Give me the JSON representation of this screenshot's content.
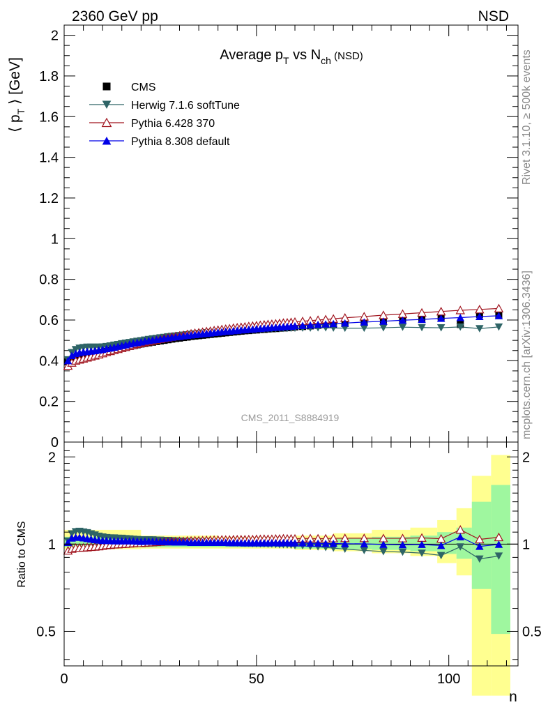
{
  "header": {
    "left": "2360 GeV pp",
    "right": "NSD"
  },
  "side_text": {
    "rivet": "Rivet 3.1.10, ≥ 500k events",
    "mcplots": "mcplots.cern.ch [arXiv:1306.3436]"
  },
  "watermark": "CMS_2011_S8884919",
  "colors": {
    "cms": "#000000",
    "herwig": "#2e6466",
    "pythia6": "#a0141e",
    "pythia8": "#0000e6",
    "band_outer": "#ffff90",
    "band_inner": "#9ff79f"
  },
  "chart_data": [
    {
      "type": "scatter",
      "title": {
        "main": "Average p",
        "sub1": "T",
        "mid": " vs N",
        "sub2": "ch",
        "tail": " (NSD)"
      },
      "ylabel": {
        "pre": "⟨ p",
        "sub": "T",
        "post": " ⟩ [GeV]"
      },
      "xlabel": "n",
      "xlim": [
        0,
        118
      ],
      "ylim": [
        0,
        2.05
      ],
      "y_ticks": [
        "0",
        "0.2",
        "0.4",
        "0.6",
        "0.8",
        "1",
        "1.2",
        "1.4",
        "1.6",
        "1.8",
        "2"
      ],
      "x_ticks": [
        "0",
        "50",
        "100"
      ],
      "legend_position": "top-left",
      "x": [
        1,
        2,
        3,
        4,
        5,
        6,
        7,
        8,
        9,
        10,
        11,
        12,
        13,
        14,
        15,
        16,
        17,
        18,
        19,
        20,
        21,
        22,
        23,
        24,
        25,
        26,
        27,
        28,
        29,
        30,
        31,
        32,
        33,
        34,
        35,
        36,
        37,
        38,
        39,
        40,
        41,
        42,
        43,
        44,
        45,
        46,
        47,
        48,
        49,
        50,
        51,
        52,
        53,
        54,
        55,
        56,
        57,
        58,
        59,
        60,
        62,
        64,
        66,
        68,
        70,
        73,
        78,
        83,
        88,
        93,
        98,
        103,
        108,
        113
      ],
      "series": [
        {
          "name": "CMS",
          "marker": "square",
          "values": [
            0.395,
            0.405,
            0.412,
            0.417,
            0.422,
            0.426,
            0.43,
            0.434,
            0.438,
            0.442,
            0.446,
            0.45,
            0.454,
            0.458,
            0.462,
            0.466,
            0.47,
            0.474,
            0.478,
            0.482,
            0.485,
            0.488,
            0.491,
            0.494,
            0.497,
            0.5,
            0.503,
            0.506,
            0.509,
            0.511,
            0.514,
            0.516,
            0.519,
            0.521,
            0.523,
            0.525,
            0.527,
            0.529,
            0.531,
            0.533,
            0.535,
            0.537,
            0.539,
            0.541,
            0.543,
            0.545,
            0.547,
            0.548,
            0.55,
            0.551,
            0.553,
            0.554,
            0.556,
            0.557,
            0.558,
            0.56,
            0.561,
            0.562,
            0.564,
            0.566,
            0.568,
            0.571,
            0.574,
            0.577,
            0.579,
            0.583,
            0.589,
            0.596,
            0.602,
            0.605,
            0.615,
            0.578,
            0.628,
            0.622
          ]
        },
        {
          "name": "Herwig 7.1.6 softTune",
          "marker": "triangle-down",
          "values": [
            0.405,
            0.44,
            0.455,
            0.462,
            0.465,
            0.467,
            0.467,
            0.467,
            0.467,
            0.468,
            0.47,
            0.473,
            0.477,
            0.48,
            0.484,
            0.487,
            0.49,
            0.493,
            0.496,
            0.499,
            0.502,
            0.505,
            0.508,
            0.51,
            0.513,
            0.515,
            0.518,
            0.52,
            0.522,
            0.524,
            0.526,
            0.528,
            0.53,
            0.532,
            0.534,
            0.536,
            0.538,
            0.539,
            0.54,
            0.541,
            0.543,
            0.544,
            0.545,
            0.547,
            0.548,
            0.549,
            0.55,
            0.551,
            0.552,
            0.553,
            0.554,
            0.555,
            0.556,
            0.557,
            0.557,
            0.558,
            0.559,
            0.559,
            0.56,
            0.56,
            0.561,
            0.561,
            0.562,
            0.562,
            0.561,
            0.56,
            0.56,
            0.562,
            0.565,
            0.563,
            0.562,
            0.566,
            0.558,
            0.566
          ]
        },
        {
          "name": "Pythia 6.428 370",
          "marker": "triangle-up-open",
          "values": [
            0.375,
            0.39,
            0.4,
            0.405,
            0.41,
            0.415,
            0.42,
            0.425,
            0.43,
            0.436,
            0.442,
            0.447,
            0.452,
            0.457,
            0.462,
            0.467,
            0.472,
            0.477,
            0.482,
            0.486,
            0.49,
            0.494,
            0.498,
            0.502,
            0.506,
            0.51,
            0.513,
            0.517,
            0.52,
            0.523,
            0.526,
            0.53,
            0.533,
            0.536,
            0.538,
            0.541,
            0.544,
            0.546,
            0.549,
            0.551,
            0.554,
            0.556,
            0.558,
            0.561,
            0.563,
            0.565,
            0.567,
            0.569,
            0.571,
            0.573,
            0.575,
            0.577,
            0.579,
            0.58,
            0.582,
            0.584,
            0.586,
            0.587,
            0.589,
            0.591,
            0.594,
            0.597,
            0.6,
            0.603,
            0.606,
            0.611,
            0.617,
            0.624,
            0.63,
            0.636,
            0.642,
            0.648,
            0.652,
            0.657
          ]
        },
        {
          "name": "Pythia 8.308 default",
          "marker": "triangle-up",
          "values": [
            0.4,
            0.425,
            0.435,
            0.44,
            0.443,
            0.445,
            0.447,
            0.449,
            0.452,
            0.455,
            0.459,
            0.462,
            0.466,
            0.47,
            0.474,
            0.478,
            0.482,
            0.486,
            0.489,
            0.492,
            0.496,
            0.499,
            0.502,
            0.504,
            0.507,
            0.51,
            0.512,
            0.515,
            0.517,
            0.519,
            0.522,
            0.524,
            0.526,
            0.528,
            0.53,
            0.532,
            0.534,
            0.536,
            0.538,
            0.54,
            0.542,
            0.544,
            0.545,
            0.547,
            0.549,
            0.551,
            0.552,
            0.554,
            0.555,
            0.557,
            0.558,
            0.56,
            0.561,
            0.563,
            0.564,
            0.565,
            0.567,
            0.568,
            0.569,
            0.571,
            0.573,
            0.575,
            0.578,
            0.58,
            0.582,
            0.585,
            0.59,
            0.594,
            0.599,
            0.603,
            0.608,
            0.612,
            0.617,
            0.621
          ]
        }
      ]
    },
    {
      "type": "scatter",
      "ylabel": "Ratio to CMS",
      "ylim": [
        0.38,
        2.25
      ],
      "y_ticks_left": [
        "0.5",
        "1",
        "2"
      ],
      "y_ticks_right": [
        "0.5",
        "1",
        "2"
      ],
      "bands": {
        "edges": [
          0,
          20,
          40,
          60,
          70,
          80,
          90,
          97,
          102,
          106,
          111,
          116
        ],
        "outer_lo": [
          0.96,
          0.965,
          0.965,
          0.955,
          0.945,
          0.93,
          0.91,
          0.86,
          0.78,
          0.3,
          0.3
        ],
        "outer_hi": [
          1.12,
          1.07,
          1.06,
          1.07,
          1.09,
          1.12,
          1.14,
          1.21,
          1.33,
          1.72,
          2.03
        ],
        "inner_lo": [
          0.975,
          0.975,
          0.975,
          0.965,
          0.96,
          0.955,
          0.945,
          0.925,
          0.89,
          0.7,
          0.49
        ],
        "inner_hi": [
          1.06,
          1.04,
          1.035,
          1.04,
          1.05,
          1.06,
          1.07,
          1.1,
          1.14,
          1.4,
          1.6
        ]
      },
      "series": [
        {
          "name": "Herwig 7.1.6 softTune",
          "values": [
            1.025,
            1.086,
            1.104,
            1.108,
            1.102,
            1.096,
            1.086,
            1.076,
            1.066,
            1.059,
            1.054,
            1.051,
            1.051,
            1.048,
            1.048,
            1.045,
            1.043,
            1.04,
            1.038,
            1.035,
            1.035,
            1.035,
            1.035,
            1.032,
            1.032,
            1.03,
            1.03,
            1.028,
            1.026,
            1.025,
            1.023,
            1.023,
            1.021,
            1.021,
            1.021,
            1.021,
            1.021,
            1.019,
            1.017,
            1.015,
            1.015,
            1.013,
            1.011,
            1.011,
            1.009,
            1.007,
            1.006,
            1.006,
            1.004,
            1.004,
            1.002,
            1.002,
            1.0,
            1.0,
            0.998,
            0.996,
            0.996,
            0.995,
            0.993,
            0.989,
            0.988,
            0.983,
            0.979,
            0.974,
            0.969,
            0.961,
            0.951,
            0.943,
            0.939,
            0.931,
            0.914,
            0.979,
            0.889,
            0.91
          ]
        },
        {
          "name": "Pythia 6.428 370",
          "values": [
            0.949,
            0.963,
            0.971,
            0.971,
            0.972,
            0.974,
            0.977,
            0.979,
            0.982,
            0.986,
            0.991,
            0.993,
            0.996,
            0.998,
            1.0,
            1.002,
            1.004,
            1.006,
            1.008,
            1.008,
            1.01,
            1.012,
            1.014,
            1.016,
            1.018,
            1.02,
            1.02,
            1.022,
            1.022,
            1.024,
            1.023,
            1.027,
            1.027,
            1.029,
            1.029,
            1.03,
            1.032,
            1.032,
            1.034,
            1.034,
            1.036,
            1.035,
            1.035,
            1.037,
            1.037,
            1.037,
            1.037,
            1.038,
            1.038,
            1.04,
            1.04,
            1.042,
            1.041,
            1.041,
            1.043,
            1.043,
            1.045,
            1.044,
            1.044,
            1.044,
            1.046,
            1.046,
            1.045,
            1.045,
            1.047,
            1.048,
            1.048,
            1.047,
            1.047,
            1.051,
            1.044,
            1.121,
            1.038,
            1.056
          ]
        },
        {
          "name": "Pythia 8.308 default",
          "values": [
            1.013,
            1.049,
            1.056,
            1.055,
            1.05,
            1.045,
            1.04,
            1.035,
            1.032,
            1.029,
            1.029,
            1.027,
            1.026,
            1.026,
            1.026,
            1.026,
            1.026,
            1.025,
            1.023,
            1.021,
            1.023,
            1.023,
            1.022,
            1.02,
            1.02,
            1.02,
            1.018,
            1.018,
            1.016,
            1.016,
            1.016,
            1.016,
            1.013,
            1.013,
            1.013,
            1.013,
            1.013,
            1.013,
            1.013,
            1.013,
            1.013,
            1.013,
            1.011,
            1.011,
            1.011,
            1.011,
            1.009,
            1.011,
            1.009,
            1.011,
            1.009,
            1.011,
            1.009,
            1.011,
            1.011,
            1.009,
            1.011,
            1.011,
            1.009,
            1.009,
            1.009,
            1.007,
            1.007,
            1.005,
            1.005,
            1.003,
            1.002,
            0.997,
            0.995,
            0.997,
            0.989,
            1.059,
            0.982,
            0.998
          ]
        }
      ]
    }
  ]
}
